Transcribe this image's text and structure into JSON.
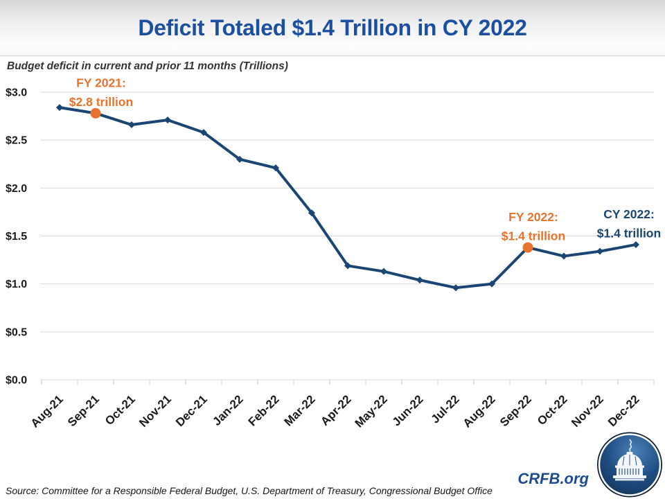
{
  "header": {
    "title": "Deficit Totaled $1.4 Trillion in CY 2022"
  },
  "chart": {
    "subtitle": "Budget deficit in current and prior 11 months (Trillions)"
  },
  "footer": {
    "source": "Source: Committee for a Responsible Federal Budget, U.S. Department of Treasury, Congressional Budget Office",
    "site": "CRFB.org",
    "logo_icon": "capitol-dome-logo"
  },
  "colors": {
    "title_blue": "#1D4FA0",
    "line_navy": "#1B4674",
    "accent_orange": "#E9732D",
    "gridline_gray": "#D9D9D9",
    "axis_text": "#1A1A1A",
    "crfb_blue": "#1D4B8F"
  },
  "chart_data": {
    "type": "line",
    "title": "Deficit Totaled $1.4 Trillion in CY 2022",
    "subtitle": "Budget deficit in current and prior 11 months (Trillions)",
    "categories": [
      "Aug-21",
      "Sep-21",
      "Oct-21",
      "Nov-21",
      "Dec-21",
      "Jan-22",
      "Feb-22",
      "Mar-22",
      "Apr-22",
      "May-22",
      "Jun-22",
      "Jul-22",
      "Aug-22",
      "Sep-22",
      "Oct-22",
      "Nov-22",
      "Dec-22"
    ],
    "series": [
      {
        "name": "Budget deficit, current and prior 11 months ($ trillions)",
        "values": [
          2.84,
          2.78,
          2.66,
          2.71,
          2.58,
          2.3,
          2.21,
          1.74,
          1.19,
          1.13,
          1.04,
          0.96,
          1.0,
          1.38,
          1.29,
          1.34,
          1.41
        ]
      }
    ],
    "ylim": [
      0,
      3.0
    ],
    "ytick_step": 0.5,
    "ytick_labels": [
      "$0.0",
      "$0.5",
      "$1.0",
      "$1.5",
      "$2.0",
      "$2.5",
      "$3.0"
    ],
    "xlabel": "",
    "ylabel": "",
    "grid": "horizontal",
    "legend": "none",
    "line_color": "#1B4674",
    "marker_color": "#1B4674",
    "annotations": [
      {
        "category": "Sep-21",
        "value": 2.78,
        "label_line1": "FY 2021:",
        "label_line2": "$2.8 trillion",
        "color": "#E9732D",
        "marker": "large-orange-dot",
        "label_dx": 8
      },
      {
        "category": "Sep-22",
        "value": 1.38,
        "label_line1": "FY 2022:",
        "label_line2": "$1.4 trillion",
        "color": "#E9732D",
        "marker": "large-orange-dot",
        "label_dx": 8
      },
      {
        "category": "Dec-22",
        "value": 1.41,
        "label_line1": "CY 2022:",
        "label_line2": "$1.4 trillion",
        "color": "#1B4674",
        "marker": "none",
        "label_dx": -10
      }
    ]
  }
}
